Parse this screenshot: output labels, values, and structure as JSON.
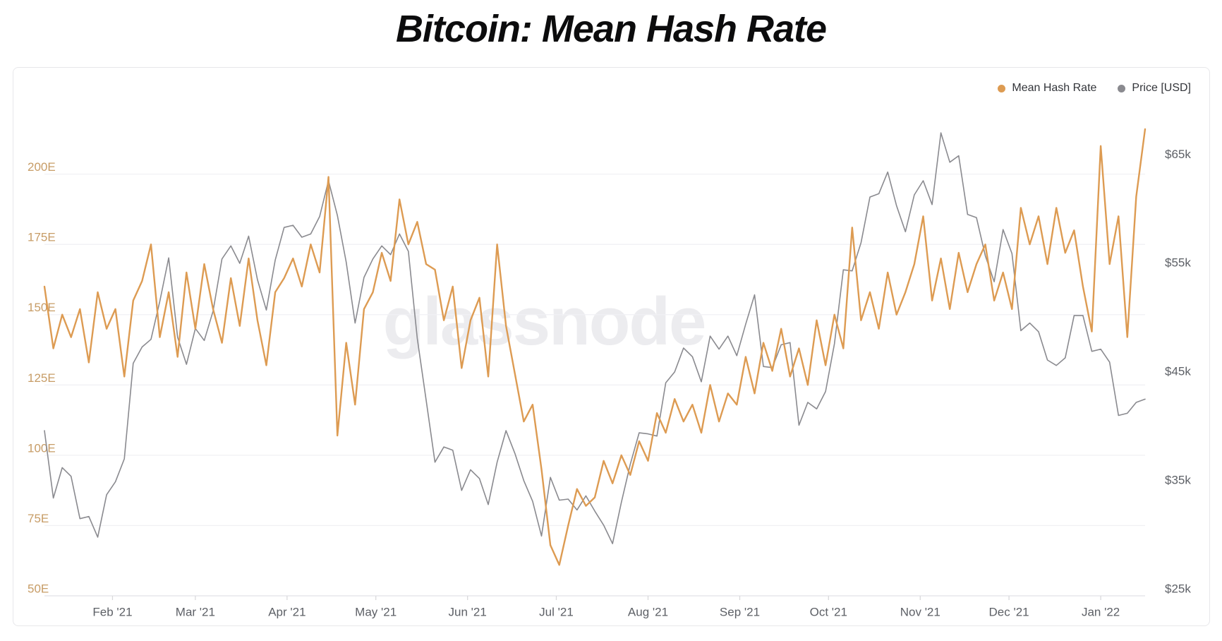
{
  "title": "Bitcoin: Mean Hash Rate",
  "watermark": "glassnode",
  "legend": {
    "items": [
      {
        "id": "hash",
        "label": "Mean Hash Rate",
        "color": "#dd9b52"
      },
      {
        "id": "price",
        "label": "Price [USD]",
        "color": "#8a8a8f"
      }
    ]
  },
  "colors": {
    "hash_line": "#dd9b52",
    "price_line": "#8a8a8f",
    "left_axis_text": "#c79c66",
    "right_axis_text": "#5d6066",
    "month_text": "#5d6066",
    "gridline": "#f1f1f4",
    "baseline": "#e2e2e6",
    "tick": "#d9d9dc",
    "watermark": "#ececef",
    "card_border": "#e7e7ea"
  },
  "chart_data": {
    "type": "line",
    "title": "Bitcoin: Mean Hash Rate",
    "x_range_note": "daily data from early Jan 2021 to mid Jan 2022, sampled every 3 days",
    "step_days": 3,
    "total_days": 372,
    "grid": true,
    "legend_position": "top-right",
    "x_ticks": [
      {
        "label": "Feb '21",
        "day": 23
      },
      {
        "label": "Mar '21",
        "day": 51
      },
      {
        "label": "Apr '21",
        "day": 82
      },
      {
        "label": "May '21",
        "day": 112
      },
      {
        "label": "Jun '21",
        "day": 143
      },
      {
        "label": "Jul '21",
        "day": 173
      },
      {
        "label": "Aug '21",
        "day": 204
      },
      {
        "label": "Sep '21",
        "day": 235
      },
      {
        "label": "Oct '21",
        "day": 265
      },
      {
        "label": "Nov '21",
        "day": 296
      },
      {
        "label": "Dec '21",
        "day": 326
      },
      {
        "label": "Jan '22",
        "day": 357
      }
    ],
    "left_axis": {
      "name": "Mean Hash Rate",
      "unit": "EH/s",
      "min": 50,
      "max": 222,
      "ticks": [
        50,
        75,
        100,
        125,
        150,
        175,
        200
      ],
      "tick_labels": [
        "50E",
        "75E",
        "100E",
        "125E",
        "150E",
        "175E",
        "200E"
      ]
    },
    "right_axis": {
      "name": "Price [USD]",
      "unit": "$k",
      "min": 25,
      "max": 69.5,
      "ticks": [
        25,
        35,
        45,
        55,
        65
      ],
      "tick_labels": [
        "$25k",
        "$35k",
        "$45k",
        "$55k",
        "$65k"
      ]
    },
    "series": [
      {
        "name": "Price [USD]",
        "axis": "right",
        "color": "#8a8a8f",
        "width": 1.6,
        "values": [
          40.2,
          34.0,
          36.8,
          36.0,
          32.1,
          32.3,
          30.4,
          34.3,
          35.5,
          37.6,
          46.4,
          47.9,
          48.6,
          52.1,
          56.1,
          48.8,
          46.3,
          49.6,
          48.5,
          51.2,
          56.0,
          57.2,
          55.6,
          58.1,
          54.1,
          51.3,
          55.9,
          58.9,
          59.1,
          58.0,
          58.3,
          59.9,
          63.2,
          60.0,
          55.7,
          50.1,
          54.3,
          56.0,
          57.2,
          56.4,
          58.3,
          56.7,
          48.7,
          43.0,
          37.3,
          38.7,
          38.4,
          34.7,
          36.6,
          35.8,
          33.4,
          37.3,
          40.2,
          38.1,
          35.6,
          33.7,
          30.5,
          35.9,
          33.8,
          33.9,
          32.9,
          34.2,
          32.8,
          31.5,
          29.8,
          33.6,
          37.1,
          40.0,
          39.9,
          39.7,
          44.6,
          45.6,
          47.8,
          47.0,
          44.7,
          48.9,
          47.7,
          48.9,
          47.1,
          50.0,
          52.7,
          46.1,
          46.0,
          48.1,
          48.3,
          40.7,
          42.8,
          42.2,
          43.8,
          48.2,
          55.0,
          54.9,
          57.5,
          61.7,
          62.0,
          64.0,
          60.9,
          58.5,
          61.9,
          63.2,
          61.0,
          67.6,
          64.9,
          65.5,
          60.1,
          59.8,
          56.3,
          53.9,
          58.7,
          56.5,
          49.4,
          50.1,
          49.3,
          46.7,
          46.2,
          46.9,
          50.8,
          50.8,
          47.5,
          47.7,
          46.5,
          41.6,
          41.8,
          42.8,
          43.1
        ]
      },
      {
        "name": "Mean Hash Rate",
        "axis": "left",
        "color": "#dd9b52",
        "width": 2.4,
        "values": [
          160,
          138,
          150,
          142,
          152,
          133,
          158,
          145,
          152,
          128,
          155,
          162,
          175,
          142,
          158,
          135,
          165,
          145,
          168,
          152,
          140,
          163,
          146,
          170,
          148,
          132,
          158,
          163,
          170,
          160,
          175,
          165,
          199,
          107,
          140,
          118,
          152,
          158,
          172,
          162,
          191,
          175,
          183,
          168,
          166,
          148,
          160,
          131,
          148,
          156,
          128,
          175,
          146,
          129,
          112,
          118,
          95,
          68,
          61,
          75,
          88,
          82,
          85,
          98,
          90,
          100,
          93,
          105,
          98,
          115,
          108,
          120,
          112,
          118,
          108,
          125,
          112,
          122,
          118,
          135,
          122,
          140,
          130,
          145,
          128,
          138,
          125,
          148,
          132,
          150,
          138,
          181,
          148,
          158,
          145,
          165,
          150,
          158,
          168,
          185,
          155,
          170,
          152,
          172,
          158,
          168,
          175,
          155,
          165,
          152,
          188,
          175,
          185,
          168,
          188,
          172,
          180,
          160,
          144,
          210,
          168,
          185,
          142,
          192,
          216
        ]
      }
    ]
  }
}
